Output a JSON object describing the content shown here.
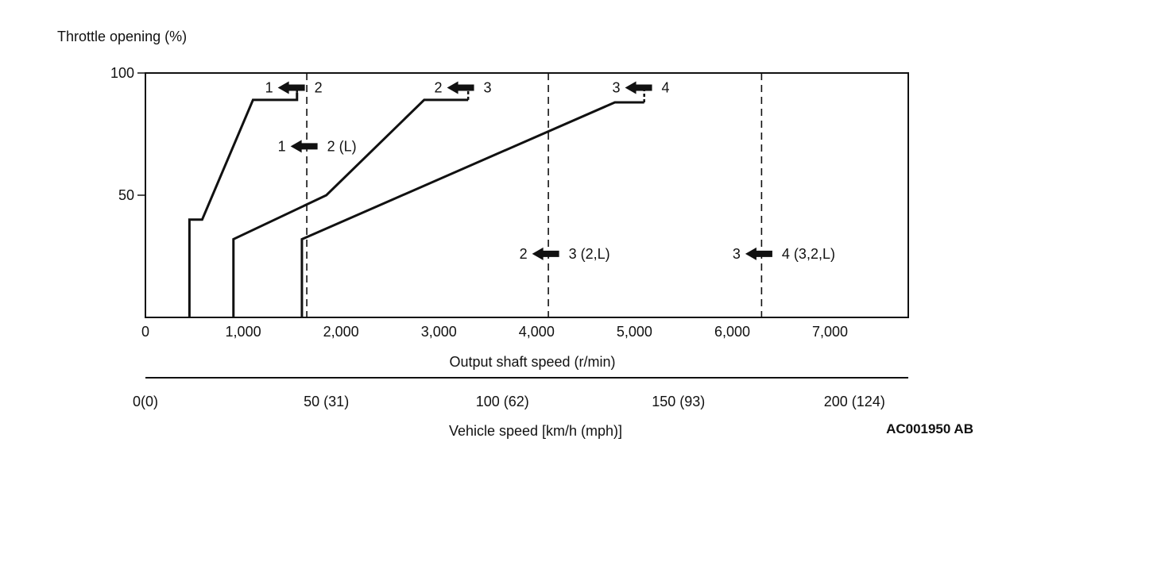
{
  "chart_data": {
    "type": "line",
    "ylabel": "Throttle opening (%)",
    "xlabel": "Output shaft speed (r/min)",
    "x2label": "Vehicle speed [km/h (mph)]",
    "code": "AC001950 AB",
    "xlim": [
      0,
      7800
    ],
    "ylim": [
      0,
      100
    ],
    "y_ticks": [
      "100",
      "50"
    ],
    "x_ticks": [
      {
        "value": 0,
        "label": "0"
      },
      {
        "value": 1000,
        "label": "1,000"
      },
      {
        "value": 2000,
        "label": "2,000"
      },
      {
        "value": 3000,
        "label": "3,000"
      },
      {
        "value": 4000,
        "label": "4,000"
      },
      {
        "value": 5000,
        "label": "5,000"
      },
      {
        "value": 6000,
        "label": "6,000"
      },
      {
        "value": 7000,
        "label": "7,000"
      }
    ],
    "x2_ticks": [
      {
        "value": 0,
        "label": "0(0)"
      },
      {
        "value": 1850,
        "label": "50 (31)"
      },
      {
        "value": 3650,
        "label": "100 (62)"
      },
      {
        "value": 5450,
        "label": "150 (93)"
      },
      {
        "value": 7250,
        "label": "200 (124)"
      }
    ],
    "series": [
      {
        "solid": [
          [
            450,
            0
          ],
          [
            450,
            40
          ],
          [
            580,
            40
          ],
          [
            1100,
            89
          ],
          [
            1550,
            89
          ],
          [
            1550,
            92
          ]
        ],
        "dashed": [
          [
            1550,
            92
          ],
          [
            1550,
            94
          ]
        ]
      },
      {
        "solid": [
          [
            900,
            0
          ],
          [
            900,
            32
          ],
          [
            1850,
            50
          ],
          [
            2850,
            89
          ],
          [
            3300,
            89
          ]
        ],
        "dashed": [
          [
            3300,
            89
          ],
          [
            3300,
            94
          ]
        ]
      },
      {
        "solid": [
          [
            1600,
            0
          ],
          [
            1600,
            32
          ],
          [
            4800,
            88
          ],
          [
            5100,
            88
          ]
        ],
        "dashed": [
          [
            5100,
            88
          ],
          [
            5100,
            94
          ]
        ]
      }
    ],
    "vlines": [
      1650,
      4120,
      6300
    ],
    "shift_labels": [
      {
        "from": "1",
        "to": "2",
        "x": 1500,
        "y": 94
      },
      {
        "from": "2",
        "to": "3",
        "x": 3230,
        "y": 94
      },
      {
        "from": "3",
        "to": "4",
        "x": 5050,
        "y": 94
      },
      {
        "from": "1",
        "to": "2 (L)",
        "x": 1630,
        "y": 70
      },
      {
        "from": "2",
        "to": "3 (2,L)",
        "x": 4100,
        "y": 26
      },
      {
        "from": "3",
        "to": "4 (3,2,L)",
        "x": 6280,
        "y": 26
      }
    ]
  }
}
